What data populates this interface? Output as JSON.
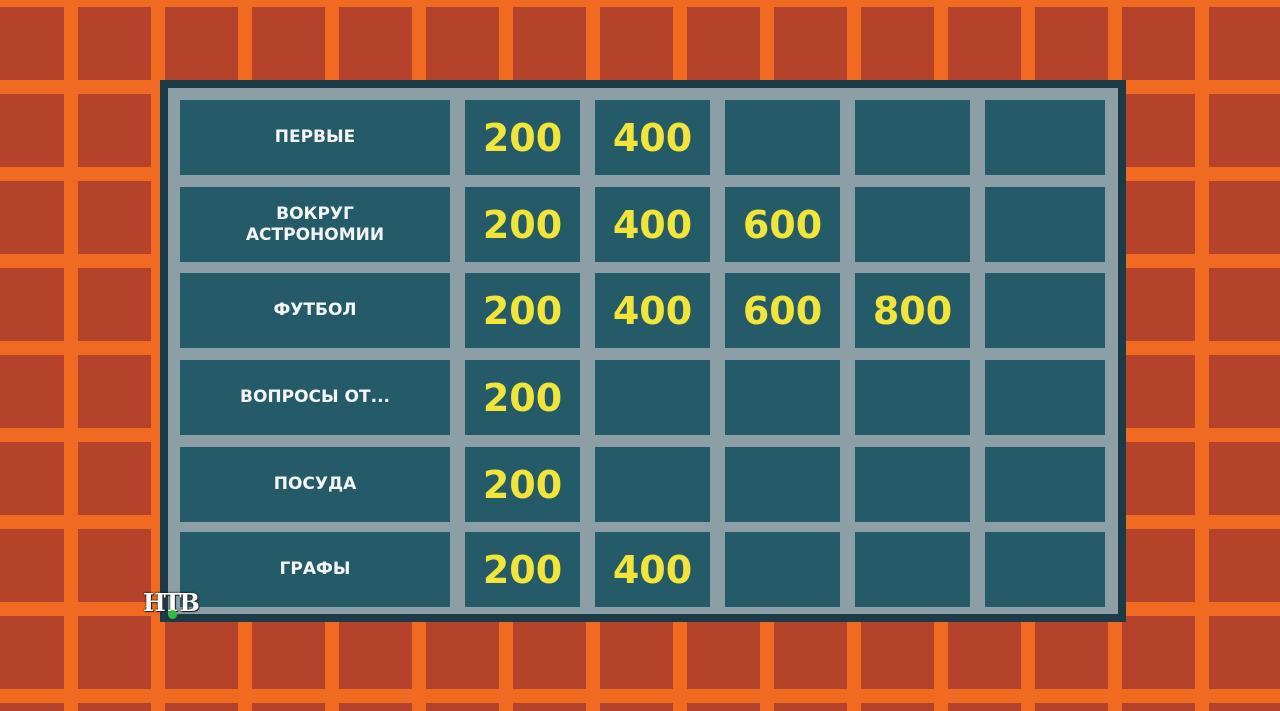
{
  "board": {
    "rows": [
      {
        "category": "ПЕРВЫЕ",
        "values": [
          "200",
          "400",
          "",
          "",
          "",
          ""
        ]
      },
      {
        "category": "ВОКРУГ АСТРОНОМИИ",
        "values": [
          "200",
          "400",
          "600",
          "",
          "",
          ""
        ]
      },
      {
        "category": "ФУТБОЛ",
        "values": [
          "200",
          "400",
          "600",
          "800",
          "",
          ""
        ]
      },
      {
        "category": "ВОПРОСЫ ОТ...",
        "values": [
          "200",
          "",
          "",
          "",
          "",
          ""
        ]
      },
      {
        "category": "ПОСУДА",
        "values": [
          "200",
          "",
          "",
          "",
          "",
          ""
        ]
      },
      {
        "category": "ГРАФЫ",
        "values": [
          "200",
          "400",
          "",
          "",
          "",
          ""
        ]
      }
    ]
  },
  "logo": {
    "text": "НТВ"
  },
  "colors": {
    "cell": "#255a68",
    "value_text": "#f2e53a",
    "frame": "#f06a22"
  }
}
